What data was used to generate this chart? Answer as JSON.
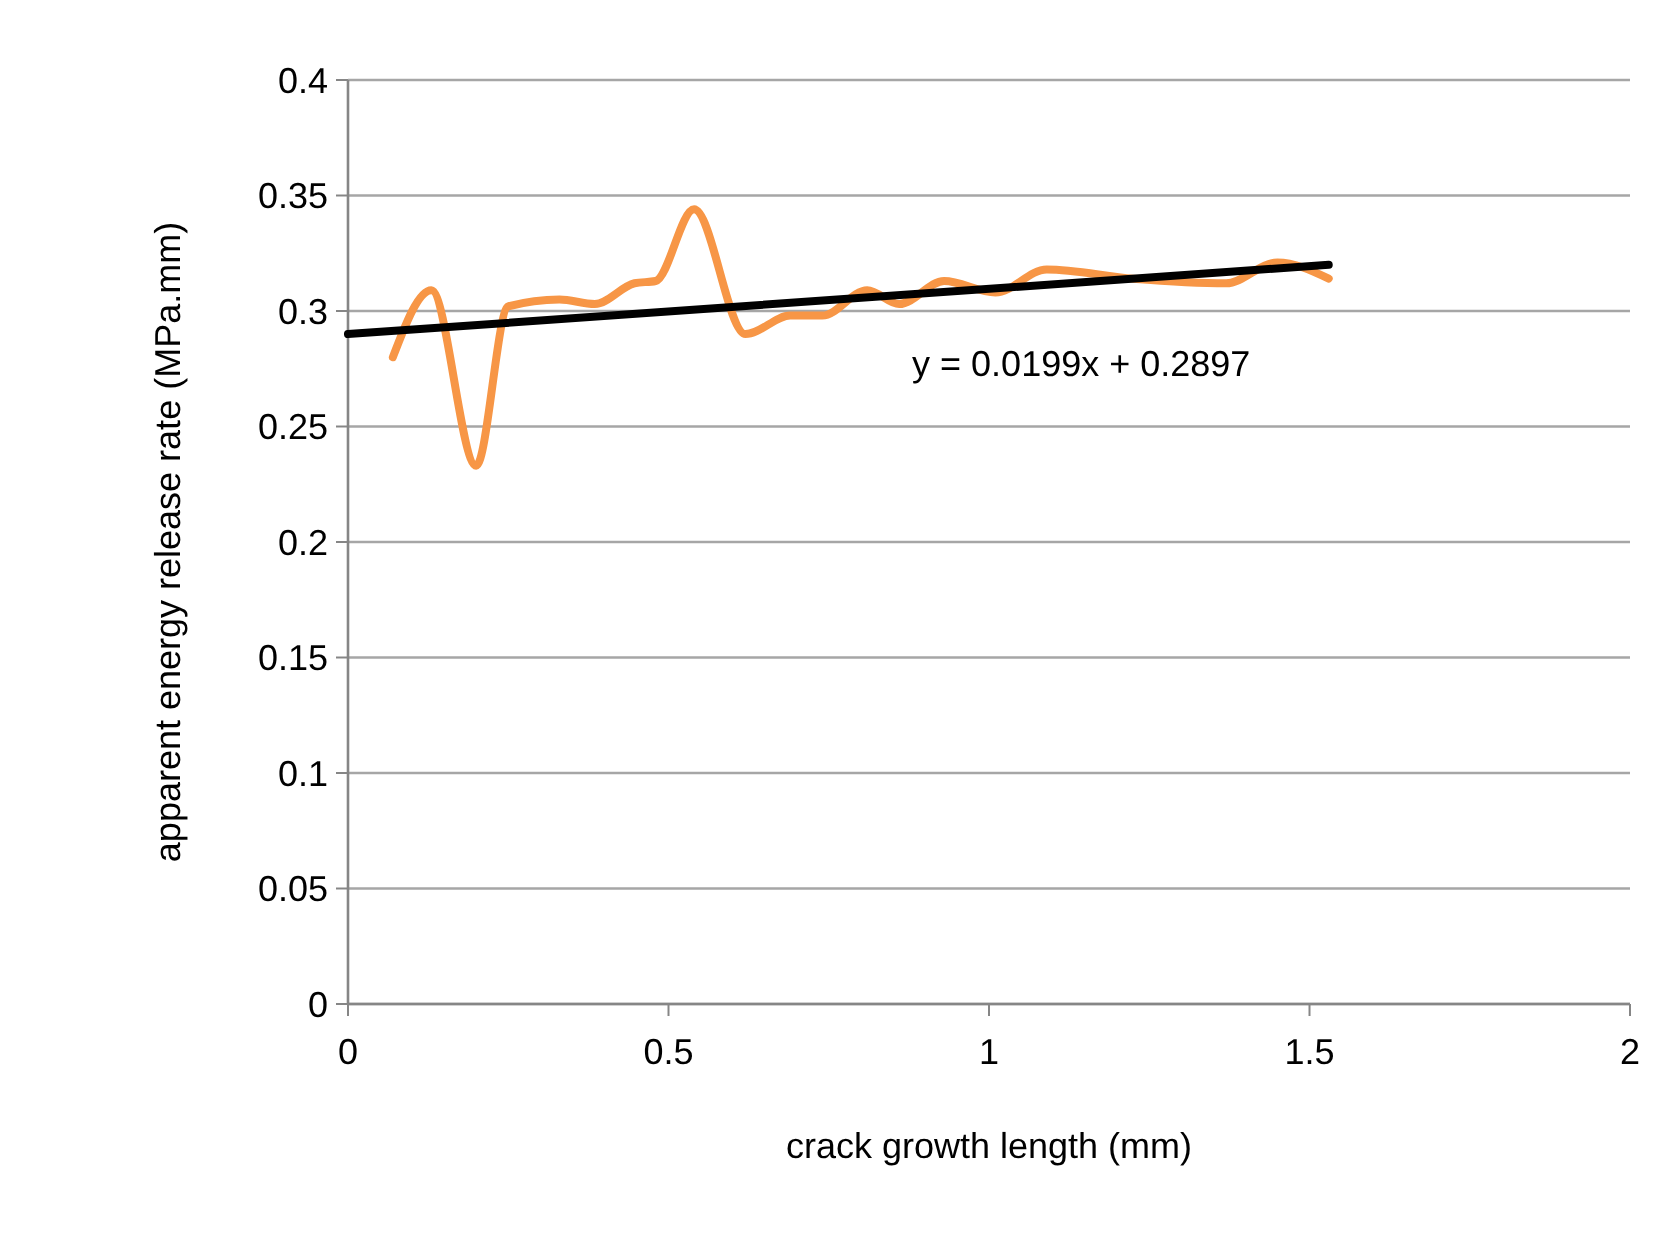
{
  "chart_data": {
    "type": "line",
    "xlabel": "crack growth length (mm)",
    "ylabel": "apparent energy release rate (MPa.mm)",
    "xlim": [
      0,
      2
    ],
    "xticks": [
      0,
      0.5,
      1,
      1.5,
      2
    ],
    "ylim": [
      0,
      0.4
    ],
    "yticks": [
      0,
      0.05,
      0.1,
      0.15,
      0.2,
      0.25,
      0.3,
      0.35,
      0.4
    ],
    "grid": "y",
    "marker": "none",
    "series": [
      {
        "color": "#f79646",
        "x": [
          0.07,
          0.13,
          0.2,
          0.25,
          0.33,
          0.385,
          0.447,
          0.48,
          0.54,
          0.62,
          0.69,
          0.74,
          0.81,
          0.86,
          0.93,
          1.01,
          1.09,
          1.225,
          1.37,
          1.45,
          1.53
        ],
        "values": [
          0.28,
          0.309,
          0.233,
          0.302,
          0.305,
          0.303,
          0.312,
          0.313,
          0.344,
          0.29,
          0.298,
          0.298,
          0.309,
          0.303,
          0.313,
          0.308,
          0.318,
          0.314,
          0.312,
          0.321,
          0.314
        ]
      },
      {
        "type": "line",
        "color": "#000000",
        "x": [
          0,
          1.53
        ],
        "values": [
          0.29,
          0.32
        ]
      }
    ],
    "annotations": [
      "y = 0.0199x + 0.2897"
    ]
  }
}
